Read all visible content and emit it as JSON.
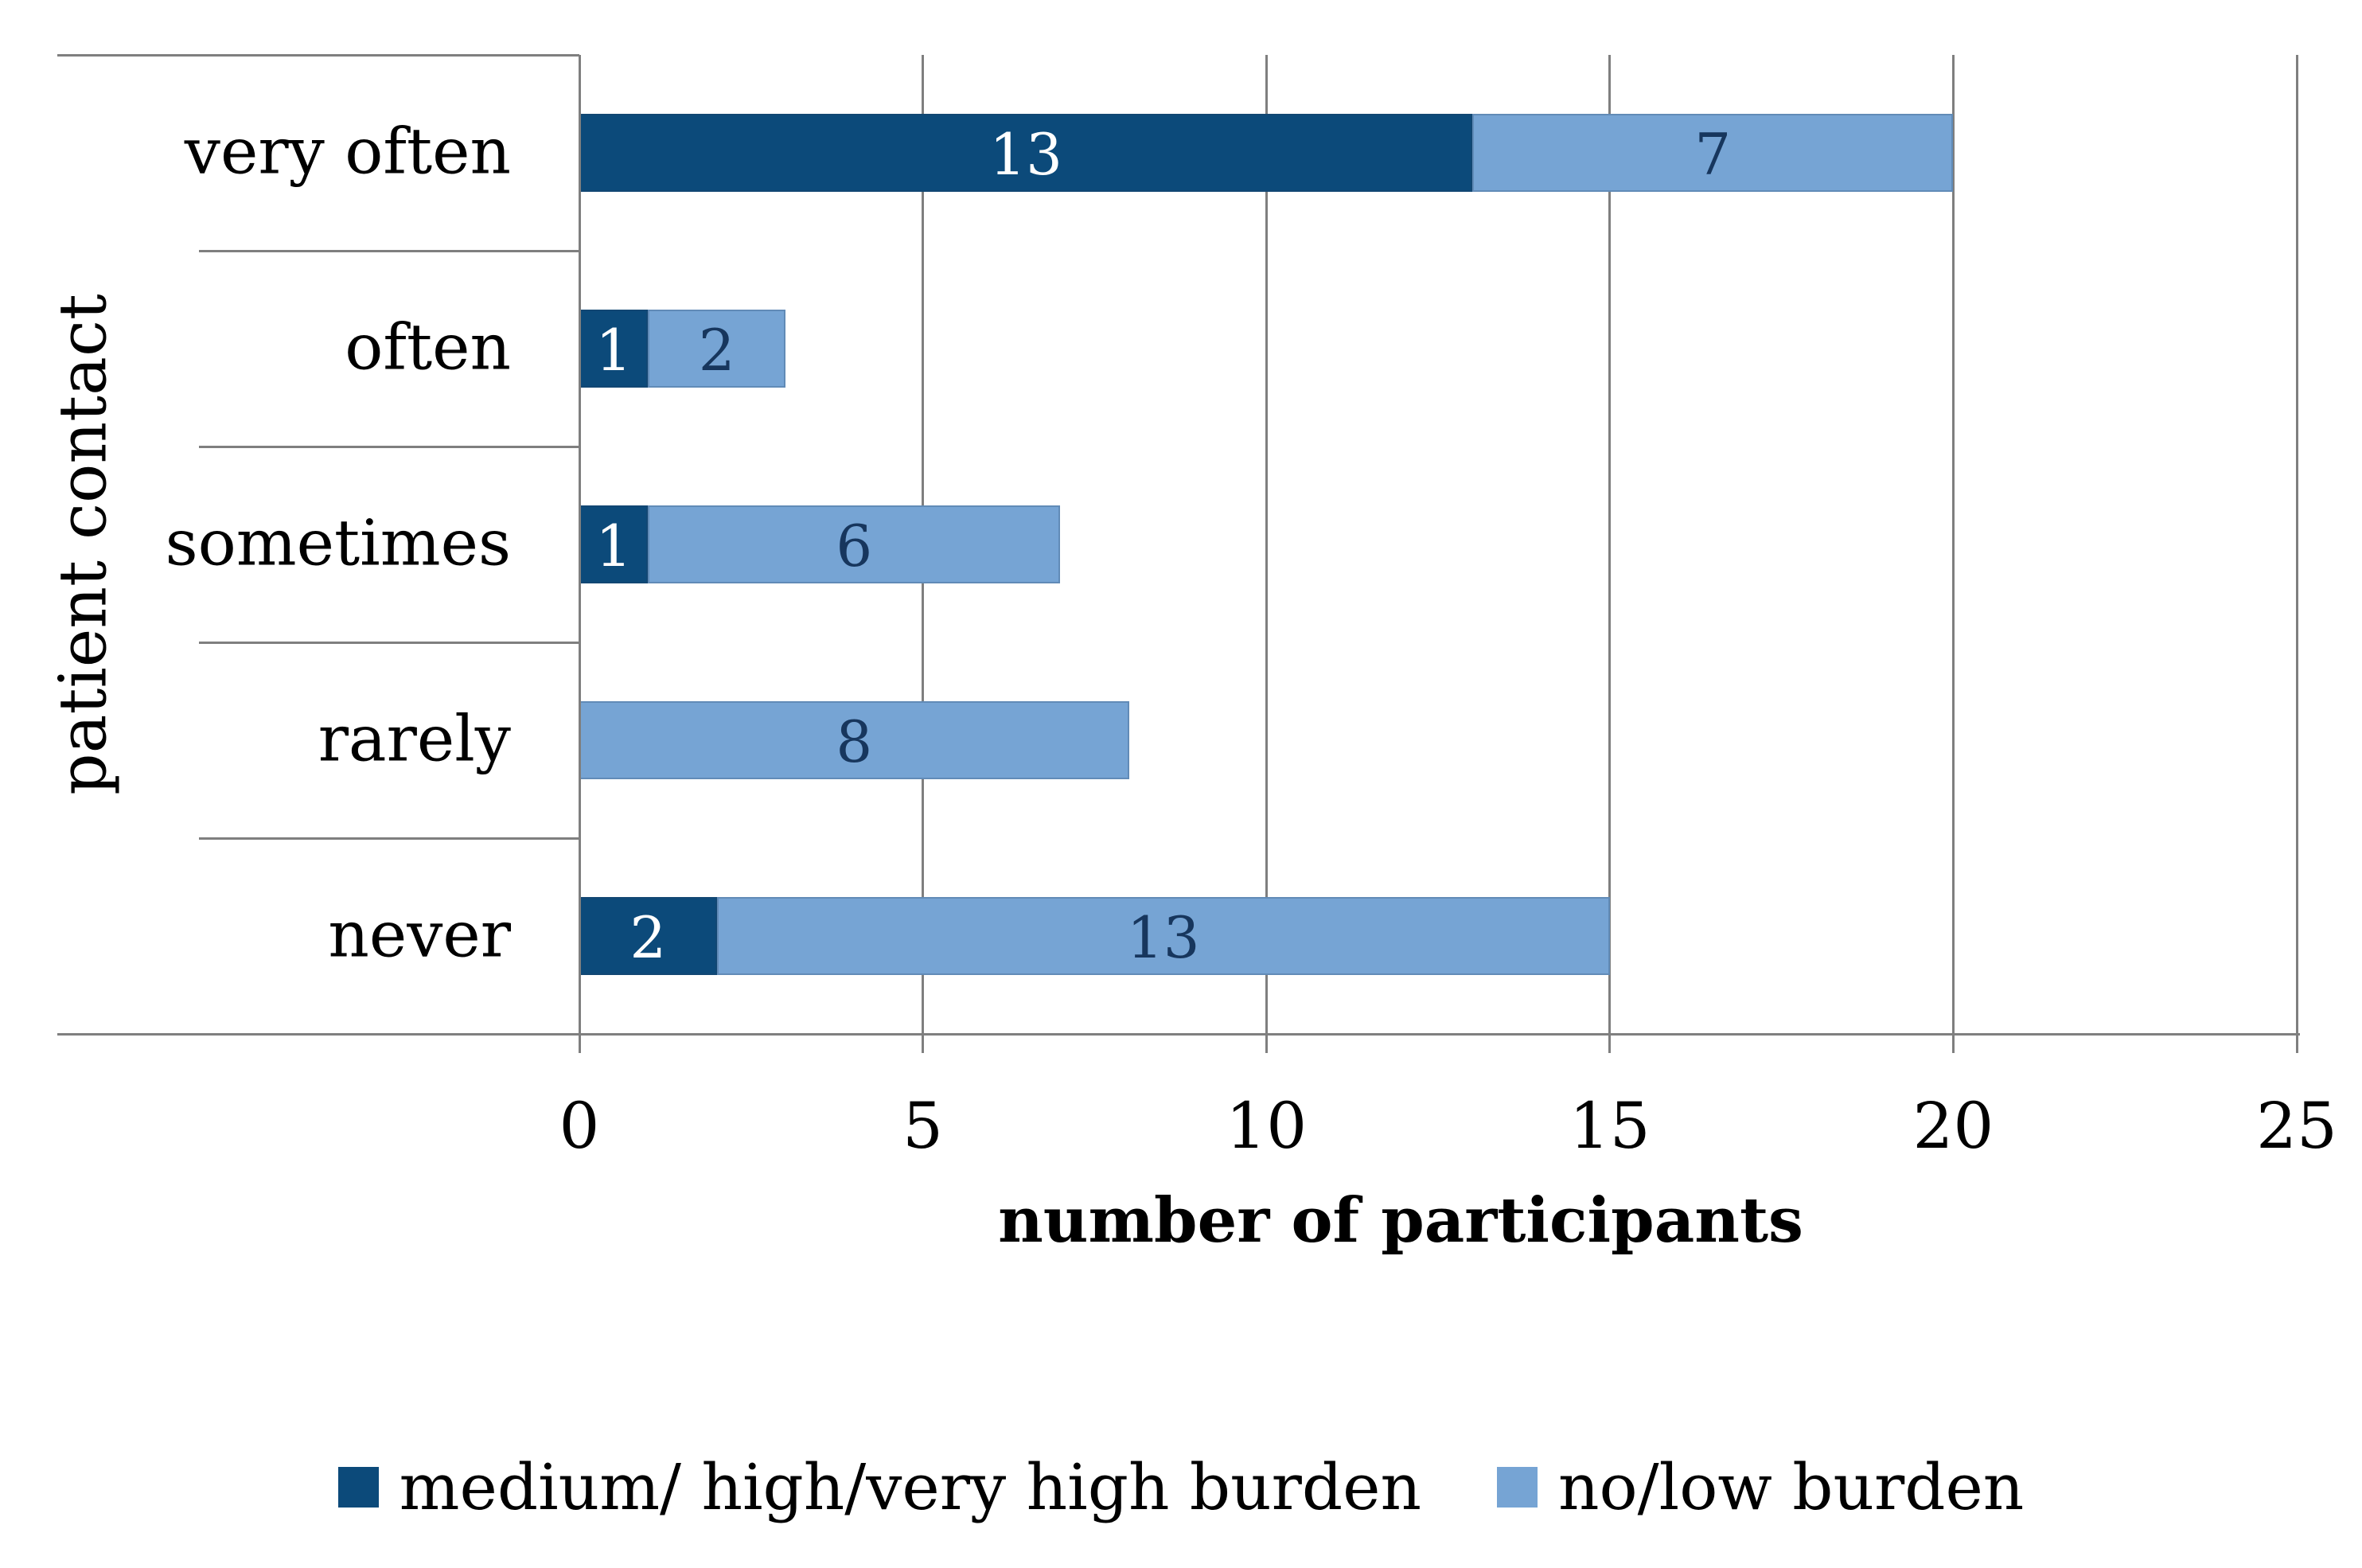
{
  "chart_data": {
    "type": "bar",
    "orientation": "horizontal",
    "stacked": true,
    "title": "",
    "xlabel": "number of participants",
    "ylabel": "patient contact",
    "categories": [
      "very often",
      "often",
      "sometimes",
      "rarely",
      "never"
    ],
    "series": [
      {
        "name": "medium/ high/very high burden",
        "color": "#0c4a7a",
        "label_color": "#ffffff",
        "values": [
          13,
          1,
          1,
          0,
          2
        ]
      },
      {
        "name": "no/low burden",
        "color": "#76a4d4",
        "label_color": "#17365d",
        "values": [
          7,
          2,
          6,
          8,
          13
        ]
      }
    ],
    "totals": [
      20,
      3,
      7,
      8,
      15
    ],
    "xlim": [
      0,
      25
    ],
    "xticks": [
      0,
      5,
      10,
      15,
      20,
      25
    ],
    "grid": true,
    "value_labels": true,
    "legend_position": "bottom",
    "colors": {
      "grid": "#7f7f7f",
      "axis": "#7f7f7f",
      "text": "#000000"
    }
  }
}
